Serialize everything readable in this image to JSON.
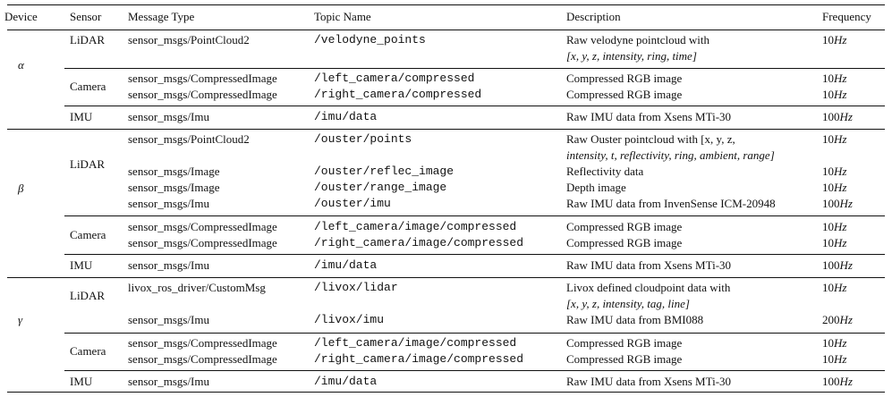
{
  "header": {
    "device": "Device",
    "sensor": "Sensor",
    "message_type": "Message Type",
    "topic_name": "Topic Name",
    "description": "Description",
    "frequency": "Frequency"
  },
  "devices": {
    "alpha": "α",
    "beta": "β",
    "gamma": "γ"
  },
  "alpha": {
    "lidar_sensor": "LiDAR",
    "lidar_msg": "sensor_msgs/PointCloud2",
    "lidar_topic": "/velodyne_points",
    "lidar_desc_1": "Raw velodyne pointcloud with",
    "lidar_desc_2": "[x, y, z, intensity, ring, time]",
    "lidar_freq": "10",
    "camera_sensor": "Camera",
    "cam_msg_1": "sensor_msgs/CompressedImage",
    "cam_msg_2": "sensor_msgs/CompressedImage",
    "cam_topic_1": "/left_camera/compressed",
    "cam_topic_2": "/right_camera/compressed",
    "cam_desc_1": "Compressed RGB image",
    "cam_desc_2": "Compressed RGB image",
    "cam_freq_1": "10",
    "cam_freq_2": "10",
    "imu_sensor": "IMU",
    "imu_msg": "sensor_msgs/Imu",
    "imu_topic": "/imu/data",
    "imu_desc": "Raw IMU data from Xsens MTi-30",
    "imu_freq": "100"
  },
  "beta": {
    "lidar_sensor": "LiDAR",
    "r1_msg": "sensor_msgs/PointCloud2",
    "r1_topic": "/ouster/points",
    "r1_desc_1": "Raw Ouster pointcloud with [x, y, z,",
    "r1_desc_2": "intensity, t, reflectivity, ring, ambient, range]",
    "r1_freq": "10",
    "r2_msg": "sensor_msgs/Image",
    "r2_topic": "/ouster/reflec_image",
    "r2_desc": "Reflectivity data",
    "r2_freq": "10",
    "r3_msg": "sensor_msgs/Image",
    "r3_topic": "/ouster/range_image",
    "r3_desc": "Depth image",
    "r3_freq": "10",
    "r4_msg": "sensor_msgs/Imu",
    "r4_topic": "/ouster/imu",
    "r4_desc": "Raw IMU data from InvenSense ICM-20948",
    "r4_freq": "100",
    "camera_sensor": "Camera",
    "cam_msg_1": "sensor_msgs/CompressedImage",
    "cam_msg_2": "sensor_msgs/CompressedImage",
    "cam_topic_1": "/left_camera/image/compressed",
    "cam_topic_2": "/right_camera/image/compressed",
    "cam_desc_1": "Compressed RGB image",
    "cam_desc_2": "Compressed RGB image",
    "cam_freq_1": "10",
    "cam_freq_2": "10",
    "imu_sensor": "IMU",
    "imu_msg": "sensor_msgs/Imu",
    "imu_topic": "/imu/data",
    "imu_desc": "Raw IMU data from Xsens MTi-30",
    "imu_freq": "100"
  },
  "gamma": {
    "lidar_sensor": "LiDAR",
    "r1_msg": "livox_ros_driver/CustomMsg",
    "r1_topic": "/livox/lidar",
    "r1_desc_1": "Livox defined cloudpoint data with",
    "r1_desc_2": "[x, y, z, intensity, tag, line]",
    "r1_freq": "10",
    "r2_msg": "sensor_msgs/Imu",
    "r2_topic": "/livox/imu",
    "r2_desc": "Raw IMU data from BMI088",
    "r2_freq": "200",
    "camera_sensor": "Camera",
    "cam_msg_1": "sensor_msgs/CompressedImage",
    "cam_msg_2": "sensor_msgs/CompressedImage",
    "cam_topic_1": "/left_camera/image/compressed",
    "cam_topic_2": "/right_camera/image/compressed",
    "cam_desc_1": "Compressed RGB image",
    "cam_desc_2": "Compressed RGB image",
    "cam_freq_1": "10",
    "cam_freq_2": "10",
    "imu_sensor": "IMU",
    "imu_msg": "sensor_msgs/Imu",
    "imu_topic": "/imu/data",
    "imu_desc": "Raw IMU data from Xsens MTi-30",
    "imu_freq": "100"
  },
  "unit": "Hz"
}
